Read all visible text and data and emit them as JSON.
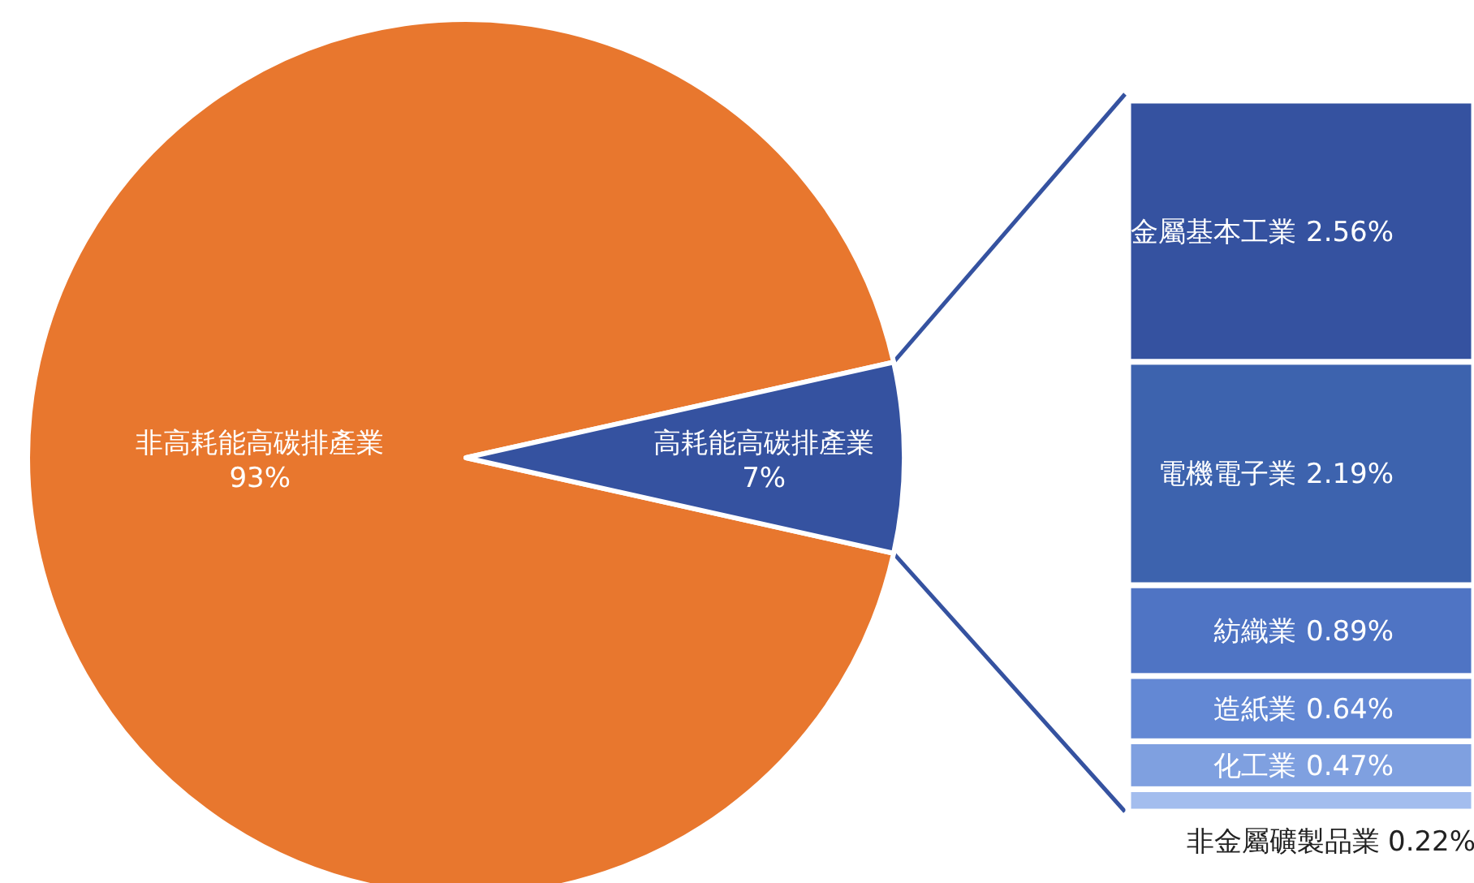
{
  "chart_data": [
    {
      "type": "pie",
      "categories": [
        "非高耗能高碳排產業",
        "高耗能高碳排產業"
      ],
      "values": [
        93,
        7
      ],
      "colors": [
        "#e8772e",
        "#3552a0"
      ],
      "value_labels": [
        "93%",
        "7%"
      ]
    },
    {
      "type": "bar",
      "stacked": true,
      "categories": [
        null
      ],
      "series": [
        {
          "name": "非金屬礦製品業",
          "color": "#a3bdee",
          "values": [
            0.22
          ],
          "value_labels": [
            "0.22%"
          ]
        },
        {
          "name": "化工業",
          "color": "#7fa0e0",
          "values": [
            0.47
          ],
          "value_labels": [
            "0.47%"
          ]
        },
        {
          "name": "造紙業",
          "color": "#6388d4",
          "values": [
            0.64
          ],
          "value_labels": [
            "0.64%"
          ]
        },
        {
          "name": "紡織業",
          "color": "#4f74c4",
          "values": [
            0.89
          ],
          "value_labels": [
            "0.89%"
          ]
        },
        {
          "name": "電機電子業",
          "color": "#3d63ae",
          "values": [
            2.19
          ],
          "value_labels": [
            "2.19%"
          ]
        },
        {
          "name": "金屬基本工業",
          "color": "#3552a0",
          "values": [
            2.56
          ],
          "value_labels": [
            "2.56%"
          ]
        }
      ]
    }
  ]
}
